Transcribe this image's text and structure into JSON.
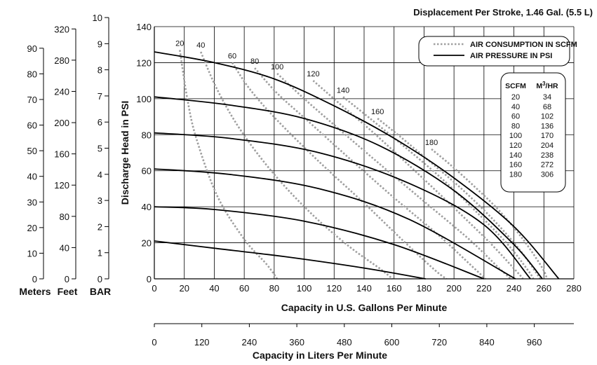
{
  "chart_data": {
    "type": "line",
    "title": "Displacement Per Stroke, 1.46 Gal. (5.5 L)",
    "xlabel": "Capacity in U.S. Gallons Per Minute",
    "ylabel": "Discharge Head in PSI",
    "xlim": [
      0,
      280
    ],
    "ylim": [
      0,
      140
    ],
    "x_ticks": [
      0,
      20,
      40,
      60,
      80,
      100,
      120,
      140,
      160,
      180,
      200,
      220,
      240,
      260,
      280
    ],
    "y_ticks": [
      0,
      20,
      40,
      60,
      80,
      100,
      120,
      140
    ],
    "grid": true,
    "secondary_x_axis": {
      "label": "Capacity in Liters Per Minute",
      "ticks": [
        0,
        120,
        240,
        360,
        480,
        600,
        720,
        840,
        960
      ]
    },
    "left_axes": [
      {
        "label": "BAR",
        "ticks": [
          0,
          1,
          2,
          3,
          4,
          5,
          6,
          7,
          8,
          9,
          10
        ],
        "psi_per_unit": 14.5038
      },
      {
        "label": "Feet",
        "ticks": [
          0,
          40,
          80,
          120,
          160,
          200,
          240,
          280,
          320
        ],
        "psi_per_unit": 0.4335
      },
      {
        "label": "Meters",
        "ticks": [
          0,
          10,
          20,
          30,
          40,
          50,
          60,
          70,
          80,
          90
        ],
        "psi_per_unit": 1.4223
      }
    ],
    "legend": {
      "placement": "top-right",
      "entries": [
        {
          "label": "AIR CONSUMPTION IN SCFM",
          "style": "dotted",
          "color": "#a0a0a0"
        },
        {
          "label": "AIR PRESSURE IN PSI",
          "style": "solid",
          "color": "#000000"
        }
      ]
    },
    "pressure_series": [
      {
        "psi": 20,
        "points": [
          [
            0,
            21
          ],
          [
            40,
            17
          ],
          [
            90,
            12
          ],
          [
            140,
            6
          ],
          [
            181,
            0
          ]
        ]
      },
      {
        "psi": 40,
        "points": [
          [
            0,
            40
          ],
          [
            40,
            38.5
          ],
          [
            100,
            32
          ],
          [
            160,
            19
          ],
          [
            220,
            0
          ]
        ]
      },
      {
        "psi": 60,
        "points": [
          [
            0,
            61
          ],
          [
            50,
            58
          ],
          [
            110,
            50
          ],
          [
            170,
            33
          ],
          [
            241,
            0
          ]
        ]
      },
      {
        "psi": 80,
        "points": [
          [
            0,
            81
          ],
          [
            50,
            78
          ],
          [
            110,
            70
          ],
          [
            170,
            53
          ],
          [
            220,
            30
          ],
          [
            251,
            0
          ]
        ]
      },
      {
        "psi": 100,
        "points": [
          [
            0,
            101
          ],
          [
            50,
            96.5
          ],
          [
            100,
            89
          ],
          [
            150,
            74
          ],
          [
            200,
            49
          ],
          [
            240,
            19
          ],
          [
            259,
            0
          ]
        ]
      },
      {
        "psi": 120,
        "points": [
          [
            0,
            126
          ],
          [
            40,
            120
          ],
          [
            80,
            111
          ],
          [
            120,
            96
          ],
          [
            160,
            78
          ],
          [
            200,
            56
          ],
          [
            240,
            29
          ],
          [
            270,
            0
          ]
        ]
      }
    ],
    "air_consumption_series": [
      {
        "scfm": 20,
        "m3_hr": 34,
        "points": [
          [
            17,
            127
          ],
          [
            22,
            100
          ],
          [
            28,
            78
          ],
          [
            42,
            46
          ],
          [
            60,
            22
          ],
          [
            75,
            8
          ],
          [
            82,
            0
          ]
        ]
      },
      {
        "scfm": 40,
        "m3_hr": 68,
        "points": [
          [
            31,
            126
          ],
          [
            42,
            105
          ],
          [
            58,
            82
          ],
          [
            80,
            58
          ],
          [
            105,
            36
          ],
          [
            130,
            18
          ],
          [
            150,
            6
          ],
          [
            159,
            0
          ]
        ]
      },
      {
        "scfm": 60,
        "m3_hr": 102,
        "points": [
          [
            52,
            120
          ],
          [
            64,
            105
          ],
          [
            82,
            88
          ],
          [
            110,
            65
          ],
          [
            140,
            42
          ],
          [
            165,
            22
          ],
          [
            187,
            5
          ],
          [
            195,
            0
          ]
        ]
      },
      {
        "scfm": 80,
        "m3_hr": 136,
        "points": [
          [
            67,
            117
          ],
          [
            82,
            103
          ],
          [
            102,
            88
          ],
          [
            130,
            67
          ],
          [
            160,
            45
          ],
          [
            190,
            24
          ],
          [
            212,
            7
          ],
          [
            221,
            0
          ]
        ]
      },
      {
        "scfm": 100,
        "m3_hr": 170,
        "points": [
          [
            82,
            114
          ],
          [
            100,
            100
          ],
          [
            122,
            84
          ],
          [
            150,
            64
          ],
          [
            180,
            43
          ],
          [
            210,
            22
          ],
          [
            230,
            6
          ],
          [
            238,
            0
          ]
        ]
      },
      {
        "scfm": 120,
        "m3_hr": 204,
        "points": [
          [
            106,
            110
          ],
          [
            124,
            97
          ],
          [
            145,
            82
          ],
          [
            170,
            63
          ],
          [
            198,
            41
          ],
          [
            224,
            20
          ],
          [
            243,
            3
          ],
          [
            246,
            0
          ]
        ]
      },
      {
        "scfm": 140,
        "m3_hr": 238,
        "points": [
          [
            126,
            101
          ],
          [
            144,
            89
          ],
          [
            166,
            74
          ],
          [
            190,
            57
          ],
          [
            214,
            38
          ],
          [
            236,
            19
          ],
          [
            250,
            4
          ],
          [
            253,
            0
          ]
        ]
      },
      {
        "scfm": 160,
        "m3_hr": 272,
        "points": [
          [
            149,
            89
          ],
          [
            164,
            79
          ],
          [
            184,
            65
          ],
          [
            205,
            50
          ],
          [
            226,
            33
          ],
          [
            244,
            16
          ],
          [
            256,
            2
          ],
          [
            258,
            0
          ]
        ]
      },
      {
        "scfm": 180,
        "m3_hr": 306,
        "points": [
          [
            185,
            72
          ],
          [
            198,
            63
          ],
          [
            214,
            51
          ],
          [
            230,
            38
          ],
          [
            246,
            22
          ],
          [
            259,
            6
          ],
          [
            262,
            0
          ]
        ]
      }
    ],
    "conversion_table": {
      "headers": [
        "SCFM",
        "M3/HR"
      ],
      "rows": [
        [
          "20",
          "34"
        ],
        [
          "40",
          "68"
        ],
        [
          "60",
          "102"
        ],
        [
          "80",
          "136"
        ],
        [
          "100",
          "170"
        ],
        [
          "120",
          "204"
        ],
        [
          "140",
          "238"
        ],
        [
          "160",
          "272"
        ],
        [
          "180",
          "306"
        ]
      ]
    }
  }
}
